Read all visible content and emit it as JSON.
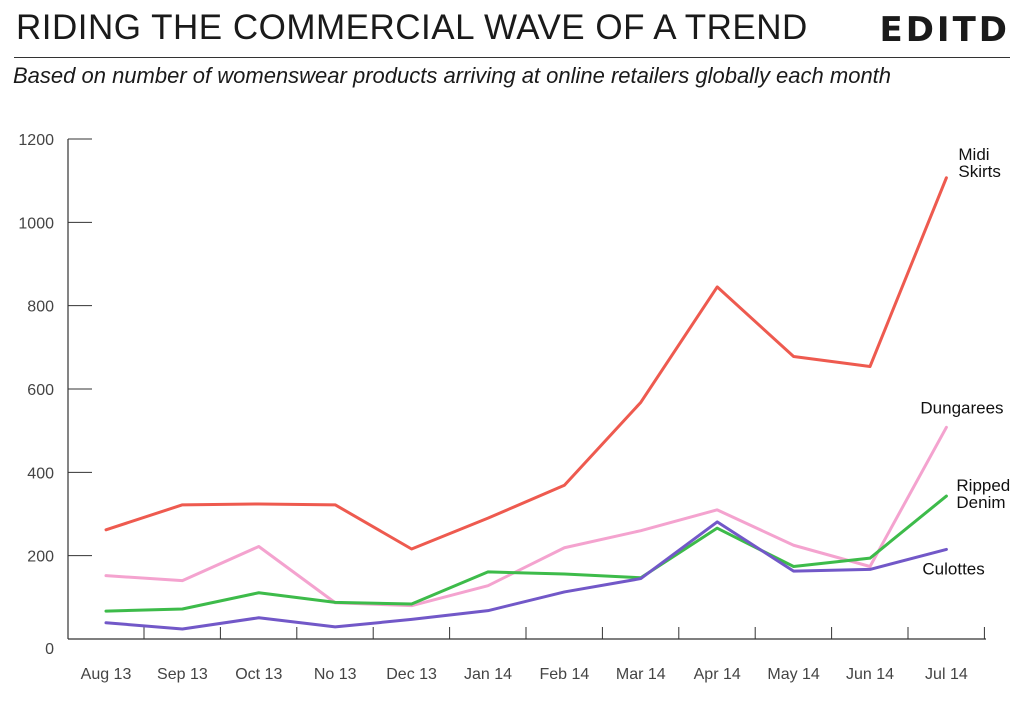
{
  "header": {
    "title": "RIDING THE COMMERCIAL WAVE OF A TREND",
    "logo": "EDITD",
    "subtitle": "Based on number of womenswear products arriving at online retailers globally each month"
  },
  "chart_data": {
    "type": "line",
    "title": "RIDING THE COMMERCIAL WAVE OF A TREND",
    "subtitle": "Based on number of womenswear products arriving at online retailers globally each month",
    "categories": [
      "Aug 13",
      "Sep 13",
      "Oct 13",
      "No 13",
      "Dec 13",
      "Jan 14",
      "Feb 14",
      "Mar 14",
      "Apr 14",
      "May 14",
      "Jun 14",
      "Jul 14"
    ],
    "ylim": [
      0,
      1200
    ],
    "yticks": [
      0,
      200,
      400,
      600,
      800,
      1000,
      1200
    ],
    "grid": false,
    "series": [
      {
        "name": "Midi Skirts",
        "label_lines": [
          "Midi",
          "Skirts"
        ],
        "color": "#ee5a4f",
        "values": [
          262,
          322,
          324,
          322,
          216,
          290,
          369,
          568,
          845,
          678,
          654,
          1107
        ]
      },
      {
        "name": "Dungarees",
        "label_lines": [
          "Dungarees"
        ],
        "color": "#f4a3cf",
        "values": [
          152,
          140,
          222,
          87,
          80,
          128,
          219,
          260,
          310,
          225,
          174,
          508
        ]
      },
      {
        "name": "Ripped Denim",
        "label_lines": [
          "Ripped",
          "Denim"
        ],
        "color": "#3dbb4a",
        "values": [
          67,
          72,
          111,
          88,
          84,
          161,
          156,
          147,
          266,
          174,
          194,
          343
        ]
      },
      {
        "name": "Culottes",
        "label_lines": [
          "Culottes"
        ],
        "color": "#7258c8",
        "values": [
          39,
          24,
          51,
          29,
          47,
          68,
          113,
          145,
          281,
          163,
          167,
          215
        ]
      }
    ]
  }
}
